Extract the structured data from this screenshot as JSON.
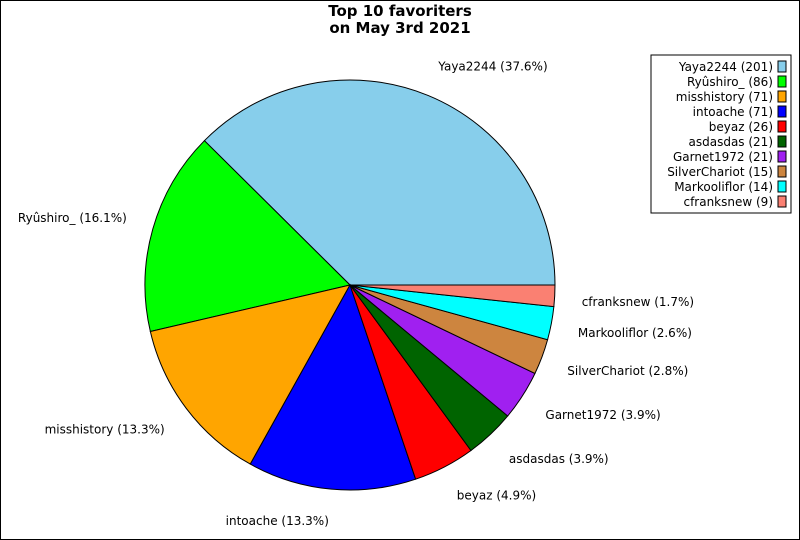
{
  "chart_data": {
    "type": "pie",
    "title": [
      "Top 10 favoriters",
      "on May 3rd 2021"
    ],
    "slices": [
      {
        "label": "Yaya2244",
        "value": 201,
        "percent_label": "Yaya2244 (37.6%)",
        "legend_label": "Yaya2244 (201)",
        "color": "#87ceeb"
      },
      {
        "label": "Ryûshiro_",
        "value": 86,
        "percent_label": "Ryûshiro_ (16.1%)",
        "legend_label": "Ryûshiro_ (86)",
        "color": "#00ff00"
      },
      {
        "label": "misshistory",
        "value": 71,
        "percent_label": "misshistory (13.3%)",
        "legend_label": "misshistory (71)",
        "color": "#ffa500"
      },
      {
        "label": "intoache",
        "value": 71,
        "percent_label": "intoache (13.3%)",
        "legend_label": "intoache (71)",
        "color": "#0000ff"
      },
      {
        "label": "beyaz",
        "value": 26,
        "percent_label": "beyaz (4.9%)",
        "legend_label": "beyaz (26)",
        "color": "#ff0000"
      },
      {
        "label": "asdasdas",
        "value": 21,
        "percent_label": "asdasdas (3.9%)",
        "legend_label": "asdasdas (21)",
        "color": "#006400"
      },
      {
        "label": "Garnet1972",
        "value": 21,
        "percent_label": "Garnet1972 (3.9%)",
        "legend_label": "Garnet1972 (21)",
        "color": "#a020f0"
      },
      {
        "label": "SilverChariot",
        "value": 15,
        "percent_label": "SilverChariot (2.8%)",
        "legend_label": "SilverChariot (15)",
        "color": "#cd853f"
      },
      {
        "label": "Markooliflor",
        "value": 14,
        "percent_label": "Markooliflor (2.6%)",
        "legend_label": "Markooliflor (14)",
        "color": "#00ffff"
      },
      {
        "label": "cfranksnew",
        "value": 9,
        "percent_label": "cfranksnew (1.7%)",
        "legend_label": "cfranksnew (9)",
        "color": "#fa8072"
      }
    ],
    "start_angle": "3 o'clock",
    "direction": "counterclockwise",
    "legend_position": "top-right"
  }
}
